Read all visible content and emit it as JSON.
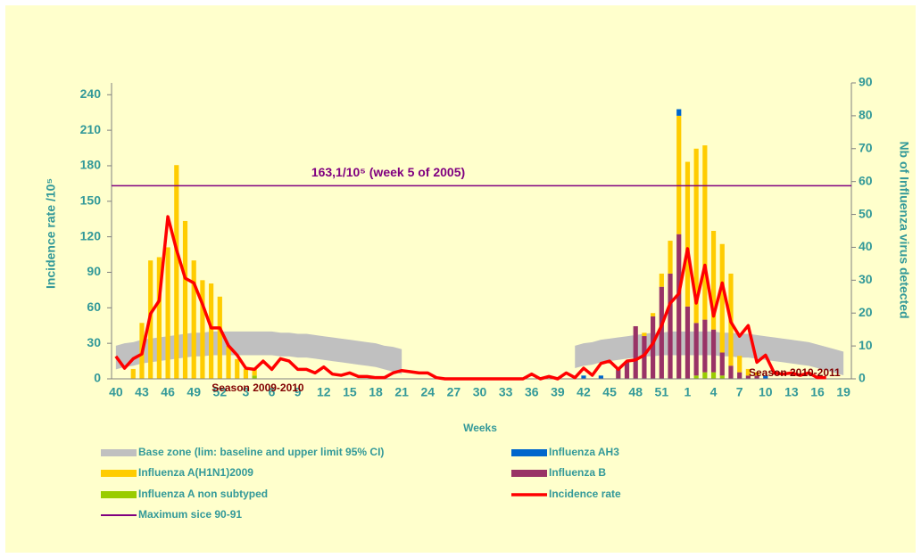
{
  "chart_data": {
    "type": "bar",
    "y_label": "Incidence rate /10⁵",
    "y2_label": "Nb of Influenza virus detected",
    "x_label": "Weeks",
    "categories": [
      "40",
      null,
      null,
      "43",
      null,
      null,
      "46",
      null,
      null,
      "49",
      null,
      null,
      "52",
      null,
      null,
      "3",
      null,
      null,
      "6",
      null,
      null,
      "9",
      null,
      null,
      "12",
      null,
      null,
      "15",
      null,
      null,
      "18",
      null,
      null,
      "21",
      null,
      null,
      "24",
      null,
      null,
      "27",
      null,
      null,
      "30",
      null,
      null,
      "33",
      null,
      null,
      "36",
      null,
      null,
      "39",
      null,
      null,
      "42",
      null,
      null,
      "45",
      null,
      null,
      "48",
      null,
      null,
      "51",
      null,
      null,
      "1",
      null,
      null,
      "4",
      null,
      null,
      "7",
      null,
      null,
      "10",
      null,
      null,
      "13",
      null,
      null,
      "16",
      null,
      null,
      "19"
    ],
    "ylim": [
      0,
      250
    ],
    "yticks": [
      0,
      30,
      60,
      90,
      120,
      150,
      180,
      210,
      240
    ],
    "y2lim": [
      0,
      90
    ],
    "y2ticks": [
      0,
      10,
      20,
      30,
      40,
      50,
      60,
      70,
      80,
      90
    ],
    "base_zone": {
      "name": "Base zone (lim: baseline and upper limit 95% CI)",
      "color": "#c0c0c0",
      "lower": [
        8,
        10,
        11,
        13,
        14,
        15,
        16,
        17,
        18,
        19,
        19,
        20,
        20,
        20,
        20,
        20,
        20,
        20,
        20,
        19,
        19,
        18,
        18,
        17,
        16,
        15,
        14,
        13,
        12,
        11,
        10,
        8,
        6,
        4,
        null,
        null,
        null,
        null,
        null,
        null,
        null,
        null,
        null,
        null,
        null,
        null,
        null,
        null,
        null,
        null,
        null,
        null,
        null,
        9,
        11,
        12,
        14,
        15,
        16,
        17,
        18,
        19,
        19,
        20,
        20,
        20,
        20,
        20,
        20,
        20,
        19,
        19,
        18,
        18,
        17,
        16,
        15,
        14,
        13,
        12,
        11,
        9,
        7,
        5,
        3
      ],
      "upper": [
        28,
        30,
        31,
        33,
        34,
        35,
        36,
        37,
        38,
        39,
        39,
        40,
        40,
        40,
        40,
        40,
        40,
        40,
        40,
        39,
        39,
        38,
        38,
        37,
        36,
        35,
        34,
        33,
        32,
        31,
        30,
        28,
        27,
        25,
        null,
        null,
        null,
        null,
        null,
        null,
        null,
        null,
        null,
        null,
        null,
        null,
        null,
        null,
        null,
        null,
        null,
        null,
        null,
        28,
        30,
        31,
        33,
        34,
        35,
        36,
        37,
        38,
        39,
        39,
        40,
        40,
        40,
        40,
        40,
        40,
        39,
        39,
        38,
        38,
        37,
        36,
        35,
        34,
        33,
        32,
        31,
        29,
        27,
        25,
        23
      ]
    },
    "series": [
      {
        "name": "Influenza A non subtyped",
        "color": "#99cc00",
        "axis": "y2",
        "type": "bar",
        "values": [
          0,
          0,
          0,
          0,
          0,
          0,
          0,
          0,
          0,
          0,
          0,
          0,
          0,
          0,
          0,
          0,
          1,
          0,
          0,
          0,
          0,
          0,
          0,
          0,
          0,
          0,
          0,
          0,
          0,
          0,
          0,
          0,
          0,
          0,
          0,
          0,
          0,
          0,
          0,
          0,
          0,
          0,
          0,
          0,
          0,
          0,
          0,
          0,
          0,
          0,
          0,
          0,
          0,
          0,
          0,
          0,
          0,
          0,
          0,
          0,
          0,
          0,
          0,
          0,
          0,
          0,
          0,
          1,
          2,
          2,
          1,
          0,
          0,
          0,
          0,
          0,
          0,
          0,
          0,
          0,
          0,
          0,
          0,
          0,
          0
        ]
      },
      {
        "name": "Influenza B",
        "color": "#993366",
        "axis": "y2",
        "type": "bar",
        "values": [
          0,
          0,
          0,
          0,
          0,
          0,
          0,
          0,
          0,
          0,
          0,
          0,
          0,
          0,
          0,
          0,
          0,
          0,
          0,
          0,
          0,
          0,
          0,
          0,
          0,
          0,
          0,
          0,
          0,
          0,
          0,
          0,
          0,
          0,
          0,
          0,
          0,
          0,
          0,
          0,
          0,
          0,
          0,
          0,
          0,
          0,
          0,
          0,
          0,
          0,
          0,
          0,
          0,
          0,
          0,
          0,
          0,
          0,
          3,
          5,
          16,
          13,
          19,
          28,
          32,
          44,
          22,
          16,
          16,
          13,
          7,
          4,
          2,
          1,
          1,
          0,
          0,
          0,
          0,
          0,
          0,
          0,
          0,
          0,
          0
        ]
      },
      {
        "name": "Influenza A(H1N1)2009",
        "color": "#ffcc00",
        "axis": "y2",
        "type": "bar",
        "values": [
          0,
          0,
          3,
          17,
          36,
          37,
          40,
          65,
          48,
          36,
          30,
          29,
          25,
          10,
          6,
          3,
          2,
          0,
          0,
          0,
          0,
          0,
          0,
          0,
          0,
          0,
          0,
          0,
          0,
          0,
          0,
          0,
          0,
          0,
          0,
          0,
          0,
          0,
          0,
          0,
          0,
          0,
          0,
          0,
          0,
          0,
          0,
          0,
          0,
          0,
          0,
          0,
          0,
          0,
          0,
          0,
          0,
          0,
          0,
          0,
          0,
          1,
          1,
          4,
          10,
          36,
          44,
          53,
          53,
          30,
          33,
          28,
          5,
          2,
          1,
          0,
          0,
          0,
          0,
          0,
          0,
          0,
          0,
          0,
          0
        ]
      },
      {
        "name": "Influenza AH3",
        "color": "#0066cc",
        "axis": "y2",
        "type": "bar",
        "values": [
          0,
          0,
          0,
          0,
          0,
          0,
          0,
          0,
          0,
          0,
          0,
          0,
          0,
          0,
          0,
          0,
          0,
          0,
          0,
          0,
          0,
          0,
          0,
          0,
          0,
          0,
          0,
          0,
          0,
          0,
          0,
          0,
          0,
          0,
          0,
          0,
          0,
          0,
          0,
          0,
          0,
          0,
          0,
          0,
          0,
          0,
          0,
          0,
          0,
          0,
          0,
          0,
          0,
          0,
          1,
          0,
          1,
          0,
          0,
          0,
          0,
          0,
          0,
          0,
          0,
          2,
          0,
          0,
          0,
          0,
          0,
          0,
          0,
          0,
          0,
          1,
          0,
          0,
          0,
          0,
          0,
          0,
          0,
          0,
          0
        ]
      },
      {
        "name": "Incidence rate",
        "color": "#ff0000",
        "type": "line",
        "values": [
          19,
          9,
          17,
          21,
          55,
          66,
          137,
          109,
          85,
          81,
          63,
          43,
          43,
          28,
          20,
          9,
          8,
          15,
          8,
          17,
          15,
          8,
          8,
          5,
          10,
          4,
          3,
          5,
          2,
          2,
          1,
          1,
          5,
          7,
          6,
          5,
          5,
          1,
          0,
          0,
          0,
          0,
          0,
          0,
          0,
          0,
          0,
          0,
          4,
          0,
          2,
          0,
          5,
          1,
          9,
          3,
          13,
          15,
          8,
          15,
          16,
          20,
          30,
          45,
          64,
          72,
          110,
          64,
          96,
          53,
          81,
          48,
          36,
          45,
          14,
          20,
          5,
          4,
          5,
          3,
          5,
          1,
          1,
          null,
          null
        ]
      }
    ],
    "maximum": {
      "name": "Maximum sice 90-91",
      "value": 163.1,
      "label": "163,1/10⁵ (week 5 of 2005)",
      "color": "#800080"
    },
    "annotations": [
      {
        "text": "Season 2009-2010",
        "index": 9,
        "value": 52
      },
      {
        "text": "Season 2010-2011",
        "index": 71,
        "value": 65
      }
    ]
  }
}
